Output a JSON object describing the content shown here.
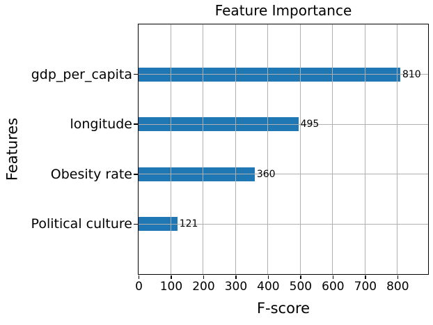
{
  "chart_data": {
    "type": "bar",
    "orientation": "horizontal",
    "title": "Feature Importance",
    "xlabel": "F-score",
    "ylabel": "Features",
    "categories": [
      "gdp_per_capita",
      "longitude",
      "Obesity rate",
      "Political culture"
    ],
    "values": [
      810,
      495,
      360,
      121
    ],
    "value_labels": [
      "810",
      "495",
      "360",
      "121"
    ],
    "x_ticks": [
      0,
      100,
      200,
      300,
      400,
      500,
      600,
      700,
      800
    ],
    "xlim": [
      0,
      895
    ],
    "grid": true,
    "legend": "none",
    "bar_color": "#1f77b4",
    "grid_color": "#b0b0b0",
    "axis_color": "#000000",
    "background_color": "#ffffff"
  }
}
